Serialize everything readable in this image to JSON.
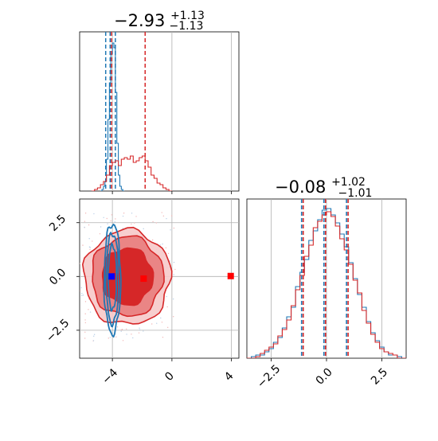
{
  "chart_data": [
    {
      "type": "histogram",
      "panel": "top-left",
      "title": {
        "main": "−2.93",
        "sup": "+1.13",
        "sub": "−1.13"
      },
      "xlim": [
        -6.2,
        4.5
      ],
      "ylim": [
        0,
        1.0
      ],
      "grid": true,
      "x_ticks": [
        -4,
        0,
        4
      ],
      "x_tick_labels": [],
      "series": [
        {
          "color": "#1f77b4",
          "bin_edges": [
            -4.8,
            -4.7,
            -4.6,
            -4.5,
            -4.4,
            -4.3,
            -4.2,
            -4.1,
            -4.0,
            -3.9,
            -3.8,
            -3.7,
            -3.6,
            -3.5,
            -3.4,
            -3.3,
            -3.2
          ],
          "counts": [
            0.0,
            0.01,
            0.03,
            0.06,
            0.2,
            0.45,
            0.68,
            0.86,
            0.93,
            0.9,
            0.62,
            0.3,
            0.1,
            0.03,
            0.01,
            0.0
          ],
          "quantile_lines": [
            -4.45,
            -4.15,
            -3.8
          ]
        },
        {
          "color": "#d62728",
          "bin_edges": [
            -5.4,
            -5.2,
            -5.0,
            -4.8,
            -4.6,
            -4.4,
            -4.2,
            -4.0,
            -3.8,
            -3.6,
            -3.4,
            -3.2,
            -3.0,
            -2.8,
            -2.6,
            -2.4,
            -2.2,
            -2.0,
            -1.8,
            -1.6,
            -1.4,
            -1.2,
            -1.0,
            -0.8,
            -0.6,
            -0.4,
            -0.2,
            0.0
          ],
          "counts": [
            0.0,
            0.01,
            0.02,
            0.04,
            0.06,
            0.1,
            0.16,
            0.18,
            0.19,
            0.16,
            0.2,
            0.21,
            0.2,
            0.22,
            0.18,
            0.19,
            0.21,
            0.22,
            0.19,
            0.15,
            0.1,
            0.08,
            0.05,
            0.04,
            0.02,
            0.01,
            0.0
          ],
          "quantile_lines": [
            -4.06,
            -1.8
          ]
        }
      ]
    },
    {
      "type": "histogram",
      "panel": "bottom-right",
      "title": {
        "main": "−0.08",
        "sup": "+1.02",
        "sub": "−1.01"
      },
      "xlim": [
        -3.6,
        3.6
      ],
      "ylim": [
        0,
        1.0
      ],
      "grid": true,
      "x_ticks": [
        -2.5,
        0.0,
        2.5
      ],
      "x_tick_labels": [
        "−2.5",
        "0.0",
        "2.5"
      ],
      "quantile_lines": [
        -1.09,
        -0.08,
        0.94
      ],
      "series": [
        {
          "color": "#1f77b4",
          "bin_edges": [
            -3.6,
            -3.4,
            -3.2,
            -3.0,
            -2.8,
            -2.6,
            -2.4,
            -2.2,
            -2.0,
            -1.8,
            -1.6,
            -1.4,
            -1.2,
            -1.0,
            -0.8,
            -0.6,
            -0.4,
            -0.2,
            0.0,
            0.2,
            0.4,
            0.6,
            0.8,
            1.0,
            1.2,
            1.4,
            1.6,
            1.8,
            2.0,
            2.2,
            2.4,
            2.6,
            2.8,
            3.0,
            3.2,
            3.4,
            3.6
          ],
          "counts": [
            0.0,
            0.01,
            0.02,
            0.02,
            0.04,
            0.06,
            0.1,
            0.13,
            0.19,
            0.26,
            0.32,
            0.45,
            0.54,
            0.62,
            0.74,
            0.8,
            0.87,
            0.93,
            0.94,
            0.9,
            0.85,
            0.78,
            0.7,
            0.6,
            0.5,
            0.4,
            0.32,
            0.23,
            0.16,
            0.11,
            0.07,
            0.04,
            0.02,
            0.02,
            0.01,
            0.0
          ]
        },
        {
          "color": "#d62728",
          "bin_edges": [
            -3.6,
            -3.4,
            -3.2,
            -3.0,
            -2.8,
            -2.6,
            -2.4,
            -2.2,
            -2.0,
            -1.8,
            -1.6,
            -1.4,
            -1.2,
            -1.0,
            -0.8,
            -0.6,
            -0.4,
            -0.2,
            0.0,
            0.2,
            0.4,
            0.6,
            0.8,
            1.0,
            1.2,
            1.4,
            1.6,
            1.8,
            2.0,
            2.2,
            2.4,
            2.6,
            2.8,
            3.0,
            3.2,
            3.4,
            3.6
          ],
          "counts": [
            0.0,
            0.0,
            0.01,
            0.03,
            0.05,
            0.07,
            0.09,
            0.14,
            0.18,
            0.24,
            0.33,
            0.43,
            0.52,
            0.64,
            0.71,
            0.82,
            0.86,
            0.9,
            0.92,
            0.89,
            0.83,
            0.75,
            0.68,
            0.59,
            0.49,
            0.41,
            0.3,
            0.22,
            0.15,
            0.1,
            0.06,
            0.04,
            0.03,
            0.02,
            0.0,
            0.0
          ]
        }
      ]
    },
    {
      "type": "contour",
      "panel": "bottom-left",
      "xlim": [
        -6.2,
        4.5
      ],
      "ylim": [
        -3.8,
        3.6
      ],
      "grid": true,
      "x_ticks": [
        -4,
        0,
        4
      ],
      "x_tick_labels": [
        "−4",
        "0",
        "4"
      ],
      "y_ticks": [
        -2.5,
        0.0,
        2.5
      ],
      "y_tick_labels": [
        "−2.5",
        "0.0",
        "2.5"
      ],
      "series": [
        {
          "color": "#d62728",
          "contours": [
            {
              "level": "outer",
              "cx": -3.0,
              "cy": -0.05,
              "rx": 2.9,
              "ry": 2.2
            },
            {
              "level": "middle",
              "cx": -3.0,
              "cy": 0.0,
              "rx": 2.4,
              "ry": 1.85
            },
            {
              "level": "inner",
              "cx": -3.0,
              "cy": 0.0,
              "rx": 1.75,
              "ry": 1.35
            }
          ],
          "markers": [
            {
              "x": -3.75,
              "y": 0.0
            },
            {
              "x": -1.9,
              "y": -0.1
            },
            {
              "x": 3.95,
              "y": 0.02
            }
          ]
        },
        {
          "color": "#1f77b4",
          "contours": [
            {
              "level": "outer",
              "cx": -4.0,
              "cy": -0.1,
              "rx": 0.55,
              "ry": 2.55
            },
            {
              "level": "middle",
              "cx": -4.0,
              "cy": -0.1,
              "rx": 0.42,
              "ry": 2.1
            },
            {
              "level": "inner",
              "cx": -4.0,
              "cy": -0.05,
              "rx": 0.28,
              "ry": 1.5
            }
          ],
          "markers": [
            {
              "x": -4.05,
              "y": 0.0
            }
          ]
        }
      ]
    }
  ]
}
